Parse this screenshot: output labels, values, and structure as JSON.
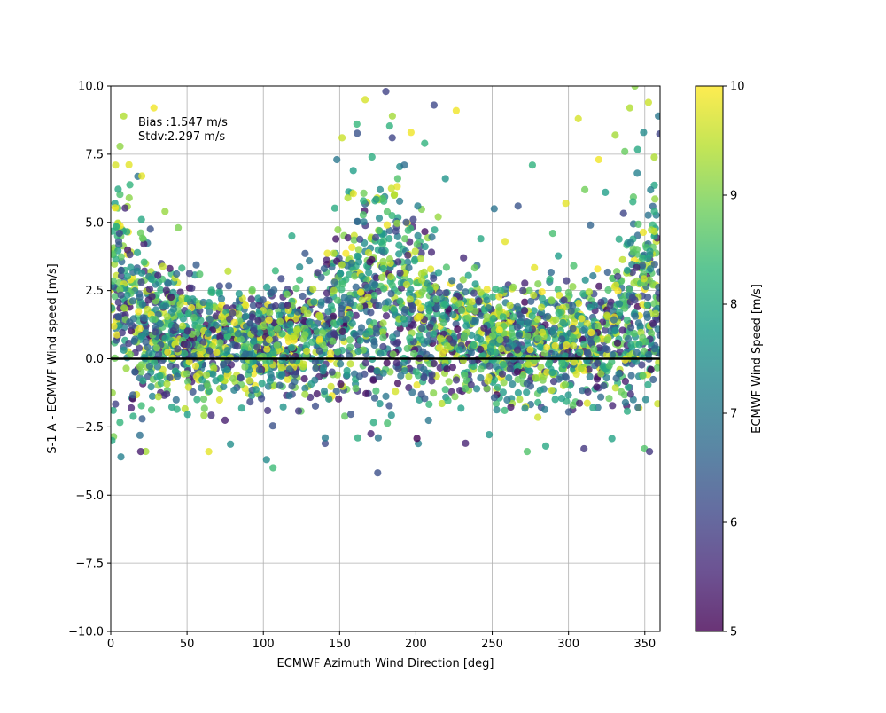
{
  "chart_data": {
    "type": "scatter",
    "xlabel": "ECMWF Azimuth Wind Direction [deg]",
    "ylabel": "S-1 A - ECMWF Wind speed [m/s]",
    "xlim": [
      0,
      360
    ],
    "ylim": [
      -10,
      10
    ],
    "x_ticks": [
      0,
      50,
      100,
      150,
      200,
      250,
      300,
      350
    ],
    "x_tick_labels": [
      "0",
      "50",
      "100",
      "150",
      "200",
      "250",
      "300",
      "350"
    ],
    "y_ticks": [
      -10,
      -7.5,
      -5,
      -2.5,
      0,
      2.5,
      5,
      7.5,
      10
    ],
    "y_tick_labels": [
      "−10.0",
      "−7.5",
      "−5.0",
      "−2.5",
      "0.0",
      "2.5",
      "5.0",
      "7.5",
      "10.0"
    ],
    "grid": true,
    "reference_line": {
      "y": 0,
      "color": "#000000"
    },
    "annotations": [
      {
        "text": "Bias :1.547 m/s",
        "x": 18,
        "y": 8.6
      },
      {
        "text": "Stdv:2.297 m/s",
        "x": 18,
        "y": 8.05
      }
    ],
    "stats": {
      "bias": 1.547,
      "stdv": 2.297,
      "unit": "m/s"
    },
    "color_dimension": {
      "label": "ECMWF Wind Speed [m/s]",
      "colormap": "viridis",
      "range": [
        5,
        10
      ],
      "ticks": [
        5,
        6,
        7,
        8,
        9,
        10
      ],
      "tick_labels": [
        "5",
        "6",
        "7",
        "8",
        "9",
        "10"
      ],
      "colormap_stops": [
        "#440154",
        "#482878",
        "#3e4989",
        "#31688e",
        "#26828e",
        "#1f9e89",
        "#35b779",
        "#6ece58",
        "#b5de2b",
        "#fde725"
      ]
    },
    "point_alpha": 0.8,
    "points_note": "representative sample of ~3000 points",
    "points": [
      [
        3.2,
        7.1,
        9.7
      ],
      [
        8.5,
        8.9,
        9.4
      ],
      [
        12.1,
        5.9,
        9.1
      ],
      [
        20.4,
        6.7,
        9.8
      ],
      [
        28.3,
        9.2,
        9.9
      ],
      [
        35.6,
        5.4,
        9.2
      ],
      [
        44.2,
        4.8,
        9.0
      ],
      [
        5.7,
        4.6,
        6.1
      ],
      [
        58.3,
        3.1,
        8.6
      ],
      [
        72.6,
        2.2,
        7.1
      ],
      [
        91.4,
        1.3,
        6.2
      ],
      [
        118.7,
        4.5,
        8.0
      ],
      [
        139.8,
        3.3,
        6.5
      ],
      [
        148.2,
        7.3,
        7.0
      ],
      [
        151.6,
        8.1,
        9.6
      ],
      [
        155.4,
        5.9,
        9.4
      ],
      [
        158.9,
        6.9,
        7.8
      ],
      [
        161.3,
        8.6,
        8.3
      ],
      [
        166.7,
        9.5,
        9.7
      ],
      [
        171.2,
        7.4,
        8.1
      ],
      [
        176.5,
        6.2,
        7.4
      ],
      [
        180.3,
        9.8,
        6.0
      ],
      [
        184.6,
        8.9,
        9.3
      ],
      [
        188.1,
        6.6,
        8.6
      ],
      [
        192.4,
        7.1,
        6.8
      ],
      [
        196.8,
        8.3,
        9.9
      ],
      [
        201.2,
        5.6,
        7.2
      ],
      [
        205.7,
        7.9,
        8.2
      ],
      [
        211.9,
        9.3,
        6.1
      ],
      [
        214.6,
        5.2,
        9.2
      ],
      [
        219.3,
        6.6,
        7.6
      ],
      [
        226.4,
        9.1,
        9.9
      ],
      [
        231.2,
        3.7,
        5.6
      ],
      [
        242.5,
        4.4,
        8.0
      ],
      [
        251.3,
        5.5,
        6.9
      ],
      [
        258.4,
        4.3,
        9.8
      ],
      [
        266.9,
        5.6,
        6.3
      ],
      [
        276.3,
        7.1,
        8.2
      ],
      [
        289.7,
        4.6,
        8.5
      ],
      [
        298.2,
        5.7,
        9.8
      ],
      [
        306.4,
        8.8,
        9.7
      ],
      [
        310.7,
        6.2,
        8.9
      ],
      [
        314.3,
        4.9,
        6.6
      ],
      [
        319.8,
        7.3,
        9.9
      ],
      [
        324.2,
        6.1,
        7.8
      ],
      [
        330.6,
        8.2,
        9.3
      ],
      [
        336.9,
        7.6,
        8.8
      ],
      [
        340.2,
        9.2,
        9.4
      ],
      [
        343.5,
        10.0,
        9.1
      ],
      [
        345.1,
        6.8,
        7.2
      ],
      [
        349.2,
        8.3,
        7.4
      ],
      [
        352.4,
        9.4,
        9.6
      ],
      [
        356.3,
        5.4,
        8.1
      ],
      [
        358.9,
        8.9,
        7.0
      ],
      [
        102.1,
        -3.7,
        7.4
      ],
      [
        106.4,
        -4.0,
        8.4
      ],
      [
        64.2,
        -3.4,
        9.8
      ],
      [
        19.6,
        -3.4,
        5.4
      ],
      [
        6.7,
        -3.6,
        7.2
      ],
      [
        0.8,
        -3.0,
        8.0
      ],
      [
        310.2,
        -3.3,
        5.8
      ],
      [
        349.7,
        -3.3,
        8.6
      ],
      [
        353.1,
        -3.4,
        5.8
      ],
      [
        285.1,
        -3.2,
        8.0
      ],
      [
        272.9,
        -3.4,
        8.6
      ],
      [
        232.5,
        -3.1,
        5.5
      ],
      [
        175.3,
        -2.9,
        7.0
      ],
      [
        161.9,
        -2.9,
        8.1
      ],
      [
        140.5,
        -2.9,
        7.1
      ]
    ]
  }
}
